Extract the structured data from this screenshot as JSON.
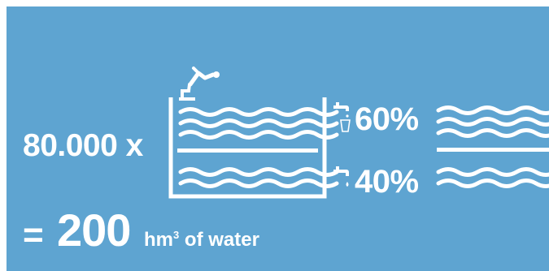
{
  "multiplier": "80.000 x",
  "share_top": "60%",
  "share_bottom": "40%",
  "equals_sign": "=",
  "total": "200",
  "unit": {
    "base": "hm",
    "exponent": "3",
    "suffix": " of water"
  },
  "icons": {
    "top": "tap-with-glass-icon",
    "bottom": "tap-dripping-icon",
    "swimmer": "diver-icon"
  },
  "colors": {
    "background": "#5ea4d1",
    "foreground": "#ffffff"
  }
}
